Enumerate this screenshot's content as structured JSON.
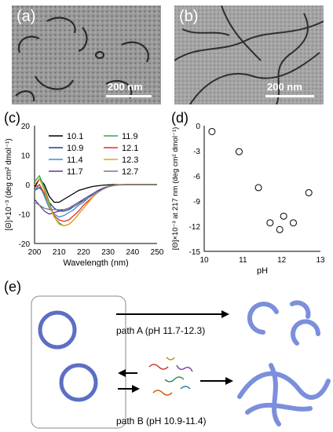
{
  "panels": {
    "a": {
      "label": "(a)",
      "scale": "200 nm"
    },
    "b": {
      "label": "(b)",
      "scale": "200 nm"
    },
    "c": {
      "label": "(c)"
    },
    "d": {
      "label": "(d)"
    },
    "e": {
      "label": "(e)",
      "path_a": "path A (pH 11.7-12.3)",
      "path_b": "path B (pH 10.9-11.4)"
    }
  },
  "colors": {
    "s10_1": "#000000",
    "s10_9": "#1f3f8f",
    "s11_4": "#3a8dd6",
    "s11_7": "#5a3a9a",
    "s11_9": "#2ea84f",
    "s12_1": "#e0302a",
    "s12_3": "#e8a21f",
    "s12_7": "#7a7a7a",
    "vesicle": "#6a7fd0",
    "fragment": "#7b8fdc"
  },
  "chart_data": [
    {
      "type": "line",
      "title": "",
      "xlabel": "Wavelength (nm)",
      "ylabel": "[Θ]×10⁻³ (deg cm² dmol⁻¹)",
      "xlim": [
        200,
        250
      ],
      "ylim": [
        -20,
        20
      ],
      "xticks": [
        200,
        210,
        220,
        230,
        240,
        250
      ],
      "yticks": [
        -20,
        -10,
        0,
        10,
        20
      ],
      "grid": false,
      "legend": "top-right",
      "x": [
        200,
        202,
        204,
        206,
        208,
        210,
        212,
        214,
        216,
        218,
        220,
        222,
        224,
        226,
        228,
        230,
        232,
        234,
        236,
        238,
        240,
        244,
        250
      ],
      "series": [
        {
          "name": "10.1",
          "values": [
            -1,
            2,
            0,
            -4,
            -6,
            -6,
            -5,
            -4,
            -3,
            -2,
            -1.5,
            -1,
            -0.6,
            -0.4,
            -0.2,
            -0.1,
            0,
            0,
            0,
            0,
            0,
            0,
            0
          ]
        },
        {
          "name": "10.9",
          "values": [
            -2,
            -1,
            -3,
            -6,
            -8,
            -9,
            -9,
            -8.5,
            -7.5,
            -6.5,
            -5,
            -4,
            -3,
            -2,
            -1.2,
            -0.6,
            -0.3,
            -0.1,
            0,
            0,
            0,
            0,
            0
          ]
        },
        {
          "name": "11.4",
          "values": [
            -2,
            0,
            -4,
            -8,
            -10,
            -11,
            -10.5,
            -9.5,
            -8.5,
            -7,
            -6,
            -4.5,
            -3,
            -2,
            -1.2,
            -0.6,
            -0.3,
            -0.1,
            0,
            0,
            0,
            0,
            0
          ]
        },
        {
          "name": "11.7",
          "values": [
            -5,
            -7,
            -9,
            -10,
            -9.5,
            -9,
            -8.5,
            -8,
            -7,
            -6,
            -5,
            -4,
            -3,
            -2,
            -1.2,
            -0.6,
            -0.3,
            -0.1,
            0,
            0,
            0,
            0,
            0
          ]
        },
        {
          "name": "11.9",
          "values": [
            1,
            3,
            -1,
            -6,
            -11,
            -13,
            -14,
            -13.5,
            -12,
            -10,
            -8,
            -6,
            -4,
            -2.5,
            -1.5,
            -0.7,
            -0.3,
            -0.1,
            0,
            0,
            0,
            0,
            0
          ]
        },
        {
          "name": "12.1",
          "values": [
            -1,
            0,
            -3,
            -7,
            -10.5,
            -12,
            -12.5,
            -12,
            -10.5,
            -9,
            -7,
            -5.5,
            -4,
            -2.5,
            -1.5,
            -0.7,
            -0.3,
            -0.1,
            0,
            0,
            0,
            0,
            0
          ]
        },
        {
          "name": "12.3",
          "values": [
            0,
            2,
            -2,
            -7,
            -11,
            -13.5,
            -14,
            -13.5,
            -12,
            -10,
            -8,
            -6,
            -4,
            -2.5,
            -1.5,
            -0.7,
            -0.3,
            -0.1,
            0,
            0,
            0,
            0,
            0
          ]
        },
        {
          "name": "12.7",
          "values": [
            -6,
            -7,
            -8,
            -8.5,
            -8.5,
            -8.5,
            -8.5,
            -8,
            -7.5,
            -6.5,
            -5.5,
            -4.5,
            -3.5,
            -2.5,
            -1.5,
            -0.8,
            -0.4,
            -0.2,
            -0.1,
            0,
            0,
            0,
            0
          ]
        }
      ]
    },
    {
      "type": "scatter",
      "title": "",
      "xlabel": "pH",
      "ylabel": "[Θ]×10⁻³ at 217 nm (deg cm² dmol⁻¹)",
      "xlim": [
        10,
        13
      ],
      "ylim": [
        -15,
        0
      ],
      "xticks": [
        10,
        11,
        12,
        13
      ],
      "yticks": [
        0,
        -3,
        -6,
        -9,
        -12,
        -15
      ],
      "grid": false,
      "points": [
        {
          "x": 10.2,
          "y": -0.7
        },
        {
          "x": 10.9,
          "y": -3.1
        },
        {
          "x": 11.4,
          "y": -7.4
        },
        {
          "x": 11.7,
          "y": -11.6
        },
        {
          "x": 11.95,
          "y": -12.4
        },
        {
          "x": 12.05,
          "y": -10.8
        },
        {
          "x": 12.3,
          "y": -11.6
        },
        {
          "x": 12.7,
          "y": -8.0
        }
      ]
    }
  ]
}
